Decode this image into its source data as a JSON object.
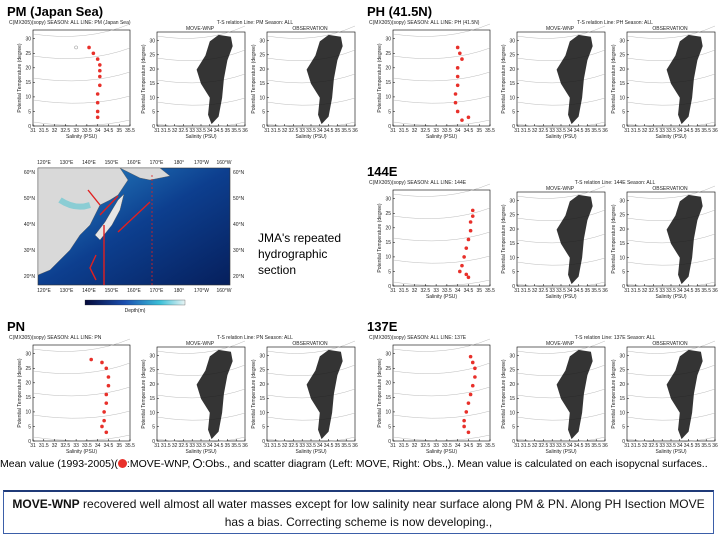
{
  "panels": [
    {
      "title": "PM (Japan Sea)",
      "mean_header": "C(MX305)(sopy) SEASON: ALL LINE: PM (Japan Sea)",
      "ts_header": "T-S relation   Line: PM   Season: ALL",
      "left_title": "MOVE-WNP",
      "right_title": "OBSERVATION",
      "mean": {
        "salinity": [
          33.6,
          33.8,
          34.0,
          34.1,
          34.1,
          34.1,
          34.1,
          34.0,
          34.0,
          34.0,
          34.0
        ],
        "temperature": [
          27,
          25,
          23,
          21,
          19,
          17,
          14,
          11,
          8,
          5,
          3
        ]
      },
      "obs": {
        "salinity": [
          33.0
        ],
        "temperature": [
          27
        ]
      }
    },
    {
      "title": "PH (41.5N)",
      "mean_header": "C(MX305)(sopy) SEASON: ALL LINE: PH (41.5N)",
      "ts_header": "T-S relation   Line: PH   Season: ALL",
      "left_title": "MOVE-WNP",
      "right_title": "OBSERVATION",
      "mean": {
        "salinity": [
          34.0,
          34.1,
          34.2,
          34.0,
          34.0,
          34.0,
          33.9,
          33.9,
          34.0,
          34.5,
          34.2
        ],
        "temperature": [
          27,
          25,
          23,
          20,
          17,
          14,
          11,
          8,
          5,
          3,
          2
        ]
      }
    },
    {
      "title": "144E",
      "mean_header": "C(MX305)(sopy) SEASON: ALL LINE: 144E",
      "ts_header": "T-S relation   Line: 144E   Season: ALL",
      "left_title": "MOVE-WNP",
      "right_title": "OBSERVATION",
      "mean": {
        "salinity": [
          34.7,
          34.7,
          34.6,
          34.6,
          34.5,
          34.4,
          34.3,
          34.2,
          34.1,
          34.4,
          34.5
        ],
        "temperature": [
          26,
          24,
          22,
          19,
          16,
          13,
          10,
          7,
          5,
          4,
          3
        ]
      }
    },
    {
      "title": "PN",
      "mean_header": "C(MX305)(sopy) SEASON: ALL LINE: PN",
      "ts_header": "T-S relation   Line: PN   Season: ALL",
      "left_title": "MOVE-WNP",
      "right_title": "OBSERVATION",
      "mean": {
        "salinity": [
          33.7,
          34.2,
          34.4,
          34.5,
          34.5,
          34.4,
          34.4,
          34.3,
          34.3,
          34.2,
          34.4
        ],
        "temperature": [
          28,
          27,
          25,
          22,
          19,
          16,
          13,
          10,
          7,
          5,
          3
        ]
      }
    },
    {
      "title": "137E",
      "mean_header": "C(MX305)(sopy) SEASON: ALL LINE: 137E",
      "ts_header": "T-S relation   Line: 137E   Season: ALL",
      "left_title": "MOVE-WNP",
      "right_title": "OBSERVATION",
      "mean": {
        "salinity": [
          34.6,
          34.7,
          34.8,
          34.8,
          34.7,
          34.6,
          34.5,
          34.4,
          34.3,
          34.3,
          34.5
        ],
        "temperature": [
          29,
          27,
          25,
          22,
          19,
          16,
          13,
          10,
          7,
          5,
          3
        ]
      }
    }
  ],
  "axes": {
    "xlabel": "Salinity (PSU)",
    "ylabel": "Potential Temperature (degree)",
    "mean_xlim": [
      31,
      35.5
    ],
    "mean_xticks": [
      31,
      31.5,
      32,
      32.5,
      33,
      33.5,
      34,
      34.5,
      35,
      35.5
    ],
    "ts_xlim": [
      31,
      36
    ],
    "ts_xticks": [
      31,
      31.5,
      32,
      32.5,
      33,
      33.5,
      34,
      34.5,
      35,
      35.5,
      36
    ],
    "ylim": [
      0,
      33
    ],
    "yticks": [
      0,
      5,
      10,
      15,
      20,
      25,
      30
    ],
    "mean_color": "#e8302a",
    "obs_color": "#888888"
  },
  "map": {
    "text": "JMA's repeated hydrographic section",
    "lon_labels": [
      "120°E",
      "130°E",
      "140°E",
      "150°E",
      "160°E",
      "170°E",
      "180°",
      "170°W",
      "160°W"
    ],
    "lat_labels": [
      "60°N",
      "50°N",
      "40°N",
      "30°N",
      "20°N"
    ],
    "colorbar_label": "Depth(m)"
  },
  "caption": {
    "start": "Mean value (1993-2005)(",
    "model": ":MOVE-WNP, ",
    "rest": ":Obs., and scatter diagram (Left: MOVE, Right: Obs.,). Mean value is calculated on each isopycnal surfaces.."
  },
  "summary": {
    "bold": "MOVE-WNP",
    "text": " recovered well almost all water masses except for low salinity near surface along  PM & PN. Along PH Isection MOVE has a bias. Correcting scheme is now developing.,"
  }
}
